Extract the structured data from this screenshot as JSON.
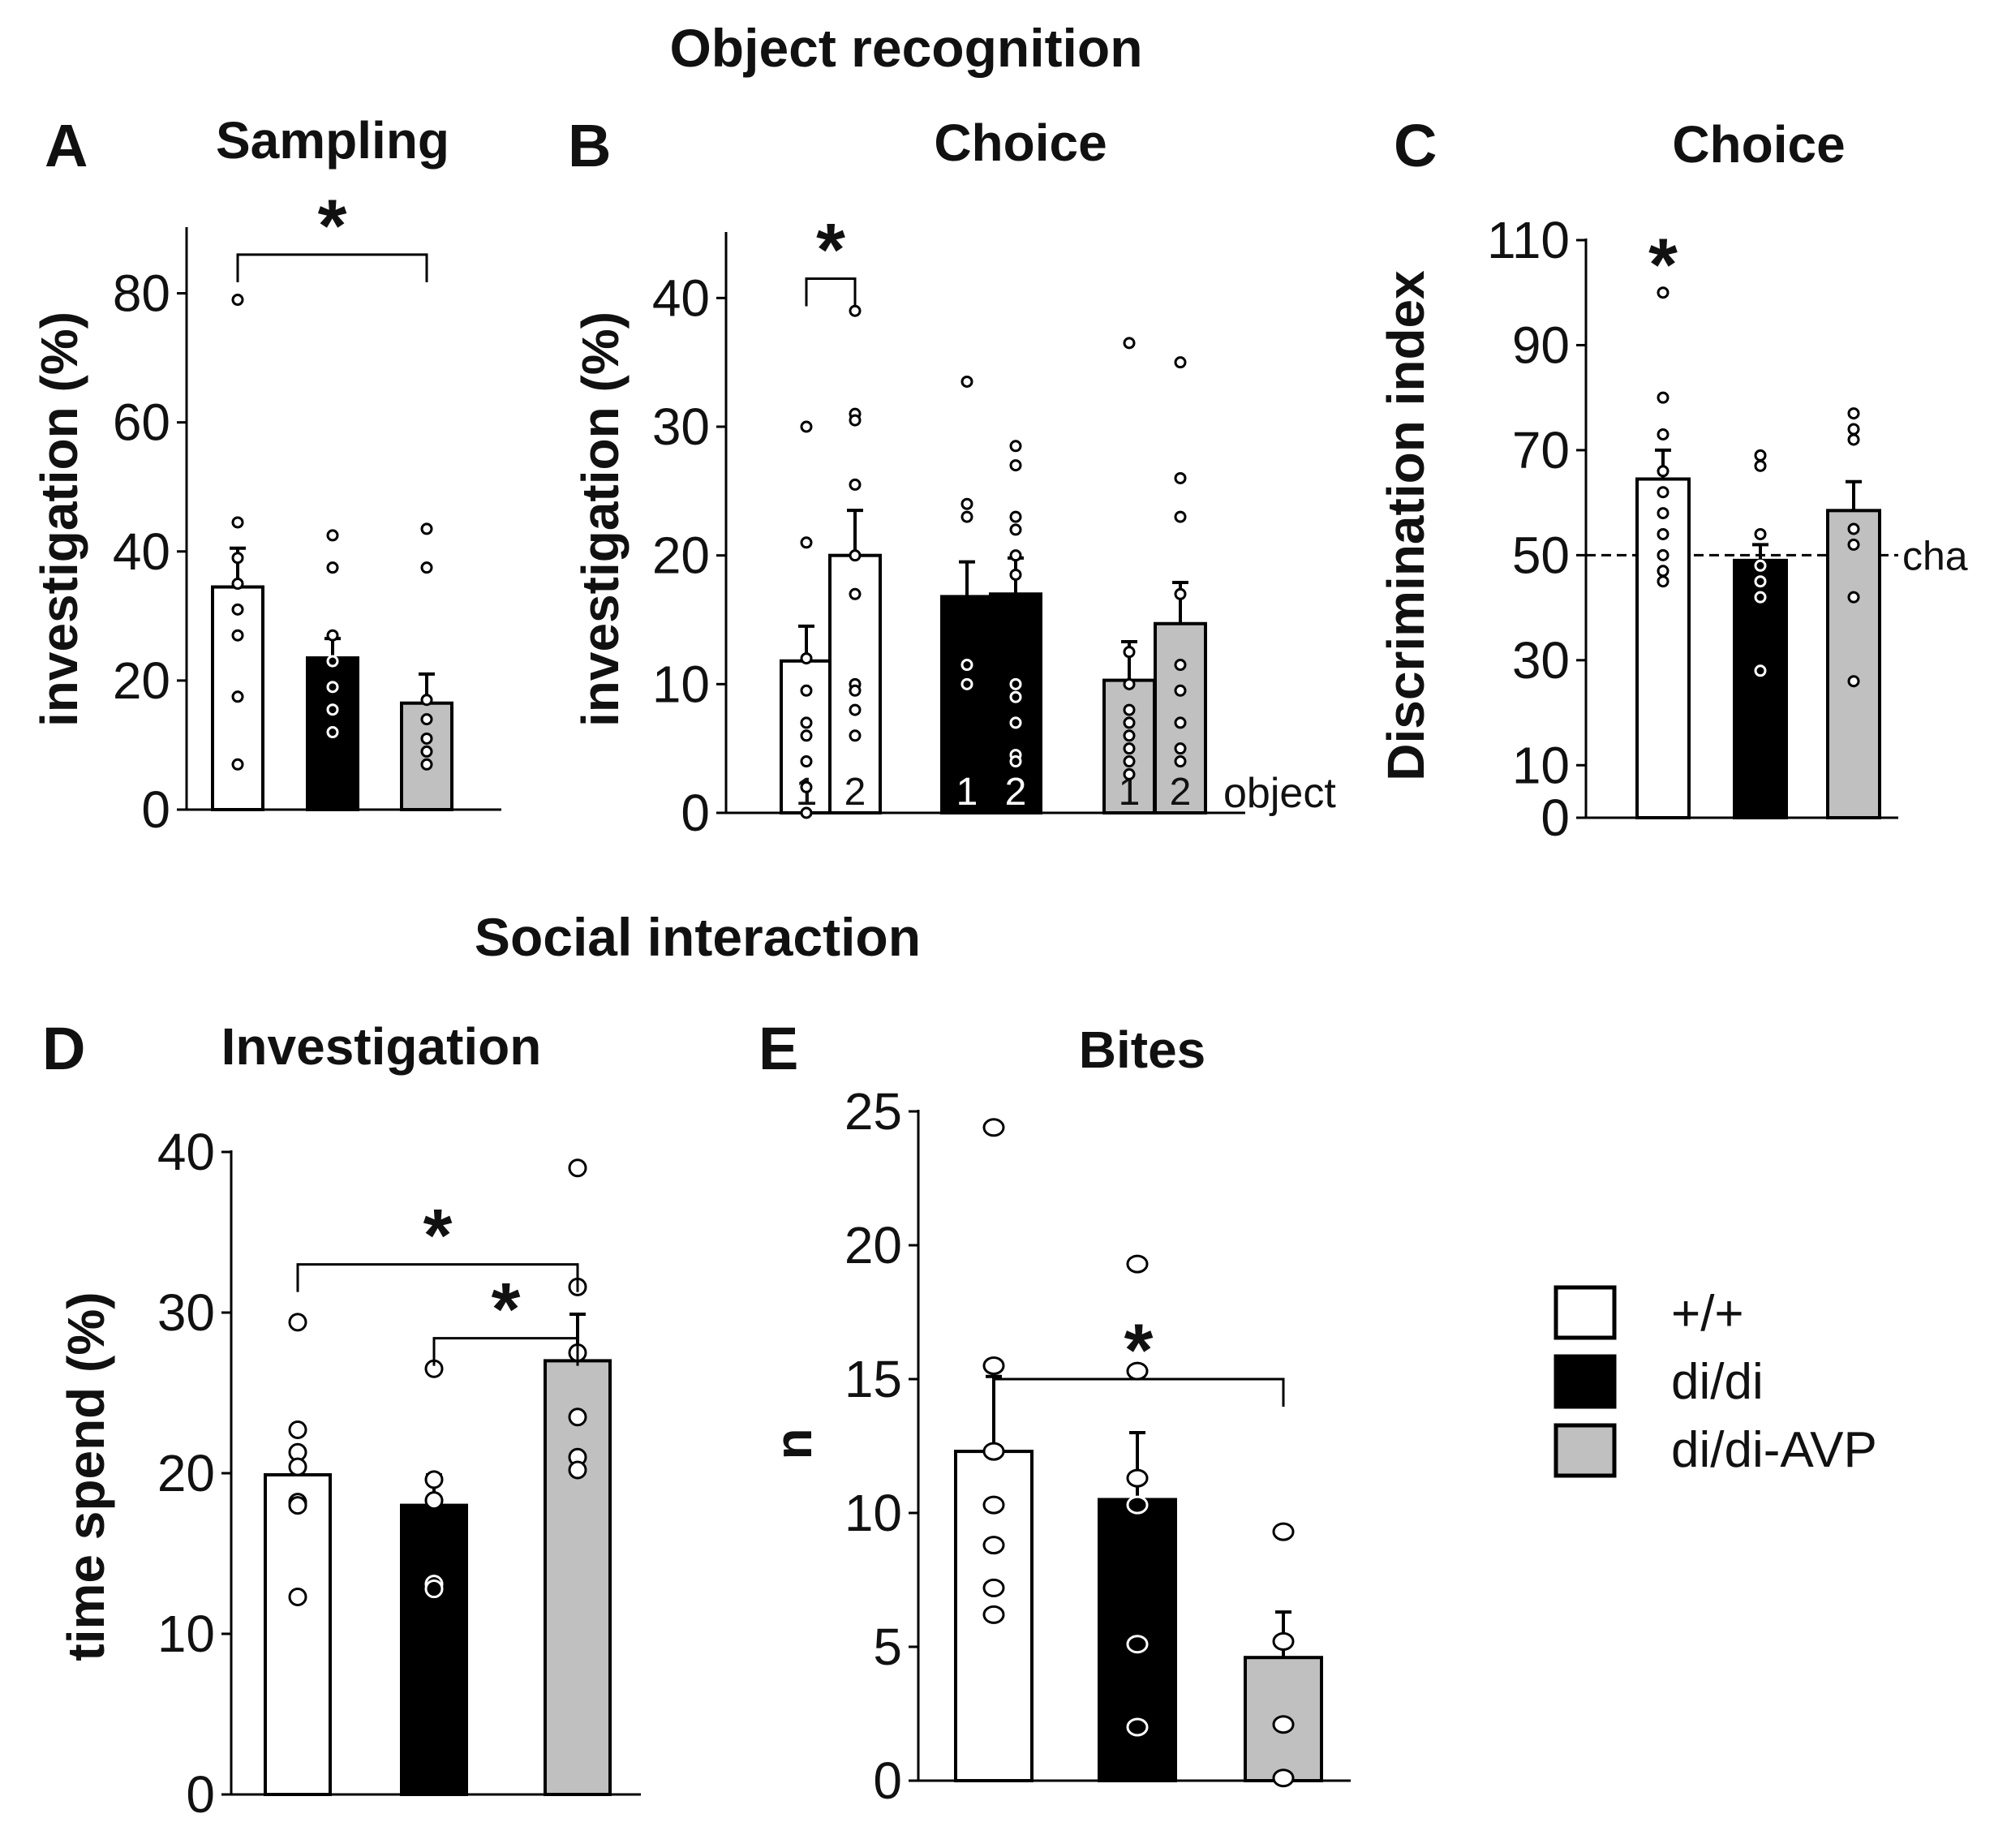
{
  "figure": {
    "section_titles": [
      "Object recognition",
      "Social interaction"
    ],
    "legend": [
      {
        "label": "+/+",
        "color": "#ffffff"
      },
      {
        "label": "di/di",
        "color": "#000000"
      },
      {
        "label": "di/di-AVP",
        "color": "#c0c0c0"
      }
    ],
    "group_colors": [
      "#ffffff",
      "#000000",
      "#c0c0c0"
    ]
  },
  "chart_data": [
    {
      "id": "A",
      "panel_label": "A",
      "type": "bar",
      "title": "Sampling",
      "ylabel": "investigation (%)",
      "ylim": [
        0,
        90
      ],
      "yticks": [
        0,
        20,
        40,
        60,
        80
      ],
      "categories": [
        "+/+",
        "di/di",
        "di/di-AVP"
      ],
      "values": [
        34.5,
        23.5,
        16.5
      ],
      "errors": [
        6,
        3,
        4.5
      ],
      "points": [
        [
          79,
          44.5,
          39,
          35,
          31,
          27,
          17.5,
          7
        ],
        [
          42.5,
          37.5,
          27,
          23,
          19,
          15.5,
          12
        ],
        [
          43.5,
          37.5,
          17,
          14,
          11,
          9,
          7
        ]
      ],
      "significance": [
        {
          "from": 0,
          "to": 2,
          "level": 86,
          "label": "*"
        }
      ]
    },
    {
      "id": "B",
      "panel_label": "B",
      "type": "bar",
      "title": "Choice",
      "ylabel": "investigation (%)",
      "ylim": [
        0,
        45
      ],
      "yticks": [
        0,
        10,
        20,
        30,
        40
      ],
      "x_annotation": "object",
      "categories": [
        "+/+ 1",
        "+/+ 2",
        "di/di 1",
        "di/di 2",
        "di/di-AVP 1",
        "di/di-AVP 2"
      ],
      "bar_numbers": [
        "1",
        "2",
        "1",
        "2",
        "1",
        "2"
      ],
      "group_of_bar": [
        0,
        0,
        1,
        1,
        2,
        2
      ],
      "values": [
        11.8,
        20,
        16.8,
        17,
        10.3,
        14.7
      ],
      "errors": [
        2.7,
        3.5,
        2.7,
        2.8,
        3,
        3.2
      ],
      "points": [
        [
          30,
          21,
          12,
          9.5,
          7,
          6,
          4,
          2,
          0
        ],
        [
          39,
          31,
          30.5,
          25.5,
          20,
          17,
          10,
          9.5,
          8,
          6
        ],
        [
          33.5,
          24,
          23,
          11.5,
          10
        ],
        [
          28.5,
          27,
          23,
          22,
          20,
          18.5,
          10,
          9,
          7,
          4.5,
          4
        ],
        [
          36.5,
          12.5,
          10,
          8,
          7,
          6,
          5,
          4,
          3
        ],
        [
          35,
          26,
          23,
          17,
          11.5,
          9.5,
          7,
          5,
          4
        ]
      ],
      "significance": [
        {
          "from": 0,
          "to": 1,
          "level": 41.5,
          "label": "*"
        }
      ]
    },
    {
      "id": "C",
      "panel_label": "C",
      "type": "bar",
      "title": "Choice",
      "ylabel": "Discrimination index",
      "ylim": [
        0,
        110
      ],
      "yticks": [
        0,
        10,
        30,
        50,
        70,
        90,
        110
      ],
      "chance_level": 50,
      "chance_label": "cha",
      "categories": [
        "+/+",
        "di/di",
        "di/di-AVP"
      ],
      "values": [
        64.5,
        49,
        58.5
      ],
      "errors": [
        5.5,
        3,
        5.5
      ],
      "points": [
        [
          100,
          80,
          73,
          66,
          62,
          58,
          54,
          50,
          47,
          45
        ],
        [
          69,
          67,
          54,
          48,
          45,
          42,
          28
        ],
        [
          77,
          74,
          72,
          55,
          52,
          42,
          26
        ]
      ],
      "significance_marks": [
        {
          "bar": 0,
          "level": 106,
          "label": "*"
        }
      ]
    },
    {
      "id": "D",
      "panel_label": "D",
      "type": "bar",
      "title": "Investigation",
      "ylabel": "time spend (%)",
      "ylim": [
        0,
        40
      ],
      "yticks": [
        0,
        10,
        20,
        30,
        40
      ],
      "categories": [
        "+/+",
        "di/di",
        "di/di-AVP"
      ],
      "values": [
        19.9,
        18,
        27
      ],
      "errors": [
        1.4,
        1.9,
        2.9
      ],
      "points": [
        [
          29.4,
          22.7,
          21.3,
          20.4,
          18.2,
          18,
          12.3
        ],
        [
          26.5,
          19.6,
          18.3,
          13.1,
          12.8
        ],
        [
          39,
          31.6,
          27.5,
          23.5,
          21,
          20.2
        ]
      ],
      "significance": [
        {
          "from": 0,
          "to": 2,
          "level": 33,
          "label": "*"
        },
        {
          "from": 1,
          "to": 2,
          "level": 28.4,
          "label": "*"
        }
      ]
    },
    {
      "id": "E",
      "panel_label": "E",
      "type": "bar",
      "title": "Bites",
      "ylabel": "n",
      "ylim": [
        0,
        25
      ],
      "yticks": [
        0,
        5,
        10,
        15,
        20,
        25
      ],
      "categories": [
        "+/+",
        "di/di",
        "di/di-AVP"
      ],
      "values": [
        12.3,
        10.5,
        4.6
      ],
      "errors": [
        2.8,
        2.5,
        1.7
      ],
      "points": [
        [
          24.4,
          15.5,
          12.3,
          10.3,
          8.8,
          7.2,
          6.2
        ],
        [
          19.3,
          15.3,
          11.3,
          10.3,
          5.1,
          2
        ],
        [
          9.3,
          5.2,
          2.1,
          0.1
        ]
      ],
      "significance": [
        {
          "from": 0,
          "to": 2,
          "level": 15,
          "label": "*"
        }
      ]
    }
  ]
}
